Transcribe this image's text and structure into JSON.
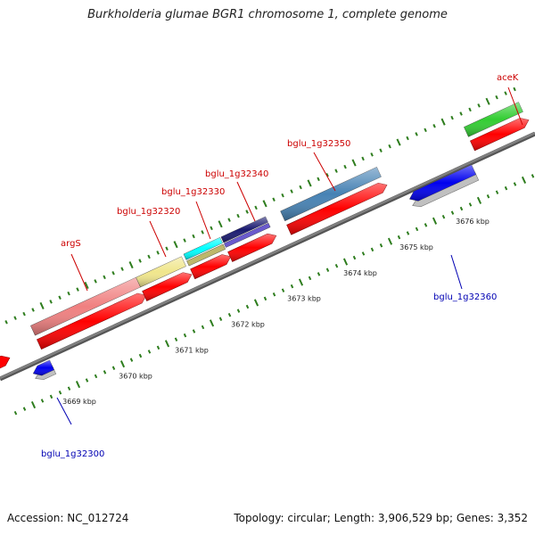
{
  "title": "Burkholderia glumae BGR1 chromosome 1, complete genome",
  "footer": {
    "accession": "Accession: NC_012724",
    "summary": "Topology: circular; Length: 3,906,529 bp; Genes: 3,352"
  },
  "colors": {
    "backbone": "#808080",
    "cds": "#ff0000",
    "tick": "#2e7d1e",
    "label_forward": "#cc0000",
    "label_reverse": "#0000b3"
  },
  "scale_labels": [
    {
      "text": "3669 kbp",
      "t": 0.1
    },
    {
      "text": "3670 kbp",
      "t": 0.205
    },
    {
      "text": "3671 kbp",
      "t": 0.31
    },
    {
      "text": "3672 kbp",
      "t": 0.415
    },
    {
      "text": "3673 kbp",
      "t": 0.52
    },
    {
      "text": "3674 kbp",
      "t": 0.625
    },
    {
      "text": "3675 kbp",
      "t": 0.73
    },
    {
      "text": "3676 kbp",
      "t": 0.835
    }
  ],
  "genes": [
    {
      "name": "bglu_1g32300",
      "strand": "reverse",
      "color": "#0000ee"
    },
    {
      "name": "argS",
      "strand": "forward",
      "color": "#f08080"
    },
    {
      "name": "bglu_1g32320",
      "strand": "forward",
      "color": "#f0e68c"
    },
    {
      "name": "bglu_1g32330",
      "strand": "forward",
      "color": "#00ffff"
    },
    {
      "name": "bglu_1g32340",
      "strand": "forward",
      "color": "#191970"
    },
    {
      "name": "bglu_1g32350",
      "strand": "forward",
      "color": "#4682b4"
    },
    {
      "name": "bglu_1g32360",
      "strand": "reverse",
      "color": "#0000ee"
    },
    {
      "name": "aceK",
      "strand": "forward",
      "color": "#32cd32"
    }
  ]
}
